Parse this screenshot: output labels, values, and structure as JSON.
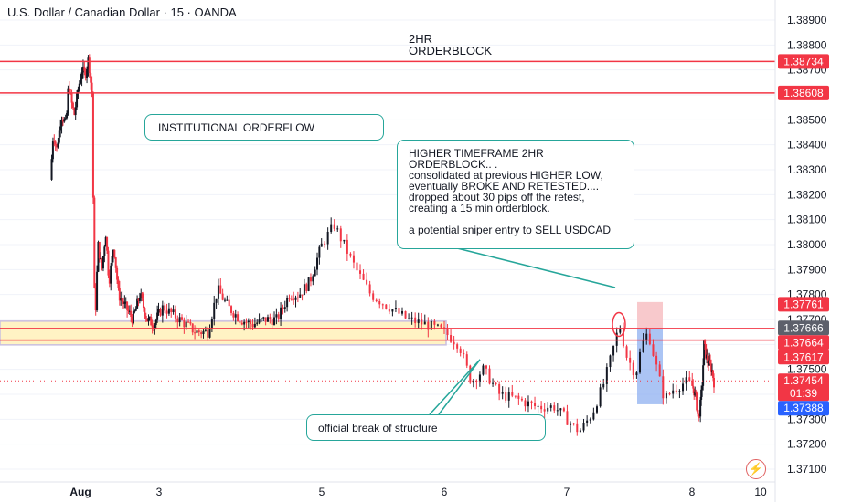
{
  "header": {
    "title": "U.S. Dollar / Canadian Dollar · 15 · OANDA"
  },
  "annotations": {
    "orderblock_label": "2HR\nORDERBLOCK",
    "institutional": "INSTITUTIONAL ORDERFLOW",
    "htf_note": "HIGHER TIMEFRAME 2HR ORDERBLOCK.. .\nconsolidated at previous HIGHER LOW, eventually BROKE AND RETESTED.... dropped about 30 pips off the retest, creating a 15 min orderblock.\n\na potential sniper entry to SELL USDCAD",
    "bos": "official break of structure"
  },
  "colors": {
    "up": "#089981",
    "down": "#f23645",
    "level_line": "#f23645",
    "zone_fill": "#fff3c4",
    "zone_border": "#c9bfe0",
    "callout_border": "#26a69a",
    "current_price_badge": "#f23645",
    "bid_badge": "#2962ff",
    "orderblock_fill": "#f8c9cc",
    "move_fill": "#8fb0f0"
  },
  "icons": {
    "alert": "lightning-icon"
  },
  "chart_data": {
    "type": "candlestick",
    "timeframe": "15",
    "ylim": [
      1.3705,
      1.3894
    ],
    "y_ticks": [
      "1.38900",
      "1.38800",
      "1.38700",
      "1.38600",
      "1.38500",
      "1.38400",
      "1.38300",
      "1.38200",
      "1.38100",
      "1.38000",
      "1.37900",
      "1.37800",
      "1.37700",
      "1.37600",
      "1.37500",
      "1.37400",
      "1.37300",
      "1.37200",
      "1.37100"
    ],
    "x_ticks": [
      {
        "label": "Aug",
        "day": 1.35
      },
      {
        "label": "3",
        "day": 3
      },
      {
        "label": "5",
        "day": 5
      },
      {
        "label": "6",
        "day": 6
      },
      {
        "label": "7",
        "day": 7
      },
      {
        "label": "8",
        "day": 8
      },
      {
        "label": "10",
        "day": 10
      }
    ],
    "price_path": [
      {
        "day": 0.72,
        "price": 1.3826
      },
      {
        "day": 0.78,
        "price": 1.3845
      },
      {
        "day": 0.85,
        "price": 1.3838
      },
      {
        "day": 0.95,
        "price": 1.3852
      },
      {
        "day": 1.05,
        "price": 1.3848
      },
      {
        "day": 1.1,
        "price": 1.3865
      },
      {
        "day": 1.15,
        "price": 1.3858
      },
      {
        "day": 1.22,
        "price": 1.3852
      },
      {
        "day": 1.3,
        "price": 1.3862
      },
      {
        "day": 1.38,
        "price": 1.387
      },
      {
        "day": 1.45,
        "price": 1.3868
      },
      {
        "day": 1.52,
        "price": 1.3875
      },
      {
        "day": 1.57,
        "price": 1.3864
      },
      {
        "day": 1.6,
        "price": 1.386
      },
      {
        "day": 1.63,
        "price": 1.379
      },
      {
        "day": 1.66,
        "price": 1.377
      },
      {
        "day": 1.72,
        "price": 1.38
      },
      {
        "day": 1.8,
        "price": 1.379
      },
      {
        "day": 1.88,
        "price": 1.3805
      },
      {
        "day": 1.95,
        "price": 1.3785
      },
      {
        "day": 2.05,
        "price": 1.38
      },
      {
        "day": 2.15,
        "price": 1.378
      },
      {
        "day": 2.3,
        "price": 1.3775
      },
      {
        "day": 2.45,
        "price": 1.377
      },
      {
        "day": 2.6,
        "price": 1.378
      },
      {
        "day": 2.75,
        "price": 1.377
      },
      {
        "day": 2.9,
        "price": 1.3768
      },
      {
        "day": 3.05,
        "price": 1.3775
      },
      {
        "day": 3.25,
        "price": 1.377
      },
      {
        "day": 3.45,
        "price": 1.3765
      },
      {
        "day": 3.6,
        "price": 1.3765
      },
      {
        "day": 3.72,
        "price": 1.3782
      },
      {
        "day": 3.85,
        "price": 1.3775
      },
      {
        "day": 4.0,
        "price": 1.377
      },
      {
        "day": 4.15,
        "price": 1.3768
      },
      {
        "day": 4.3,
        "price": 1.377
      },
      {
        "day": 4.45,
        "price": 1.377
      },
      {
        "day": 4.6,
        "price": 1.378
      },
      {
        "day": 4.72,
        "price": 1.378
      },
      {
        "day": 4.85,
        "price": 1.3785
      },
      {
        "day": 5.0,
        "price": 1.38
      },
      {
        "day": 5.1,
        "price": 1.3808
      },
      {
        "day": 5.18,
        "price": 1.38
      },
      {
        "day": 5.28,
        "price": 1.379
      },
      {
        "day": 5.4,
        "price": 1.378
      },
      {
        "day": 5.55,
        "price": 1.3775
      },
      {
        "day": 5.7,
        "price": 1.377
      },
      {
        "day": 5.85,
        "price": 1.3768
      },
      {
        "day": 6.0,
        "price": 1.3765
      },
      {
        "day": 6.12,
        "price": 1.376
      },
      {
        "day": 6.22,
        "price": 1.3745
      },
      {
        "day": 6.32,
        "price": 1.375
      },
      {
        "day": 6.45,
        "price": 1.374
      },
      {
        "day": 6.6,
        "price": 1.3738
      },
      {
        "day": 6.75,
        "price": 1.3735
      },
      {
        "day": 6.9,
        "price": 1.3735
      },
      {
        "day": 7.0,
        "price": 1.373
      },
      {
        "day": 7.1,
        "price": 1.3725
      },
      {
        "day": 7.2,
        "price": 1.3732
      },
      {
        "day": 7.3,
        "price": 1.3745
      },
      {
        "day": 7.38,
        "price": 1.376
      },
      {
        "day": 7.42,
        "price": 1.3768
      },
      {
        "day": 7.48,
        "price": 1.3755
      },
      {
        "day": 7.55,
        "price": 1.3748
      },
      {
        "day": 7.6,
        "price": 1.376
      },
      {
        "day": 7.65,
        "price": 1.3765
      },
      {
        "day": 7.72,
        "price": 1.375
      },
      {
        "day": 7.78,
        "price": 1.3738
      },
      {
        "day": 7.85,
        "price": 1.3742
      },
      {
        "day": 7.95,
        "price": 1.3745
      },
      {
        "day": 8.05,
        "price": 1.3742
      },
      {
        "day": 8.12,
        "price": 1.3738
      },
      {
        "day": 8.18,
        "price": 1.373
      },
      {
        "day": 8.24,
        "price": 1.3735
      },
      {
        "day": 8.3,
        "price": 1.3745
      },
      {
        "day": 8.35,
        "price": 1.376
      },
      {
        "day": 8.42,
        "price": 1.3755
      },
      {
        "day": 8.5,
        "price": 1.3752
      },
      {
        "day": 8.58,
        "price": 1.375
      },
      {
        "day": 8.64,
        "price": 1.3745
      }
    ],
    "levels": [
      1.38734,
      1.38608,
      1.37664,
      1.37617
    ],
    "current_price_line": 1.37454,
    "price_badges": [
      {
        "price": 1.38734,
        "label": "1.38734",
        "color": "#f23645"
      },
      {
        "price": 1.38608,
        "label": "1.38608",
        "color": "#f23645"
      },
      {
        "price": 1.37761,
        "label": "1.37761",
        "color": "#f23645"
      },
      {
        "price": 1.37666,
        "label": "1.37666",
        "color": "#5d606b"
      },
      {
        "price": 1.37664,
        "label": "1.37664",
        "color": "#f23645"
      },
      {
        "price": 1.37617,
        "label": "1.37617",
        "color": "#f23645"
      },
      {
        "price": 1.37454,
        "label": "1.37454",
        "color": "#f23645",
        "sublabel": "01:39"
      },
      {
        "price": 1.37388,
        "label": "1.37388",
        "color": "#2962ff"
      }
    ]
  }
}
